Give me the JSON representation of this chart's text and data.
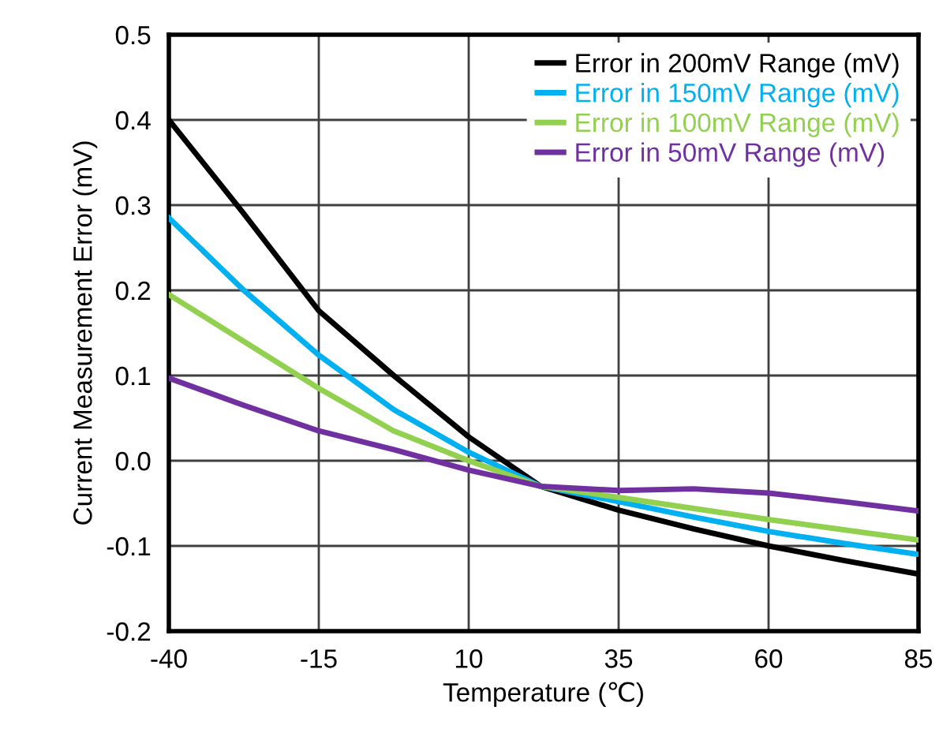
{
  "chart_data": {
    "type": "line",
    "xlabel": "Temperature (℃)",
    "ylabel": "Current Measurement Error (mV)",
    "x": [
      -40,
      -27.5,
      -15,
      -2.5,
      10,
      22,
      35,
      47.5,
      60,
      72.5,
      85
    ],
    "series": [
      {
        "name": "Error in 200mV Range (mV)",
        "color": "#000000",
        "values": [
          0.4,
          0.29,
          0.176,
          0.1,
          0.028,
          -0.03,
          -0.058,
          -0.08,
          -0.1,
          -0.117,
          -0.133
        ]
      },
      {
        "name": "Error in 150mV Range (mV)",
        "color": "#00b0f0",
        "values": [
          0.285,
          0.2,
          0.124,
          0.06,
          0.01,
          -0.03,
          -0.048,
          -0.066,
          -0.083,
          -0.097,
          -0.11
        ]
      },
      {
        "name": "Error in 100mV Range (mV)",
        "color": "#92d050",
        "values": [
          0.195,
          0.14,
          0.085,
          0.035,
          0.0,
          -0.03,
          -0.043,
          -0.056,
          -0.069,
          -0.081,
          -0.093
        ]
      },
      {
        "name": "Error in 50mV Range (mV)",
        "color": "#7030a0",
        "values": [
          0.097,
          0.065,
          0.035,
          0.013,
          -0.011,
          -0.03,
          -0.035,
          -0.033,
          -0.038,
          -0.048,
          -0.059
        ]
      }
    ],
    "xlim": [
      -40,
      85
    ],
    "xticks": [
      -40,
      -15,
      10,
      35,
      60,
      85
    ],
    "ylim": [
      -0.2,
      0.5
    ],
    "yticks": [
      -0.2,
      -0.1,
      {
        "value": 0.0,
        "label": "0.0"
      },
      0.1,
      0.2,
      0.3,
      0.4,
      0.5
    ],
    "grid": true,
    "legend": "top right",
    "marker": "none",
    "line_style": "solid"
  }
}
